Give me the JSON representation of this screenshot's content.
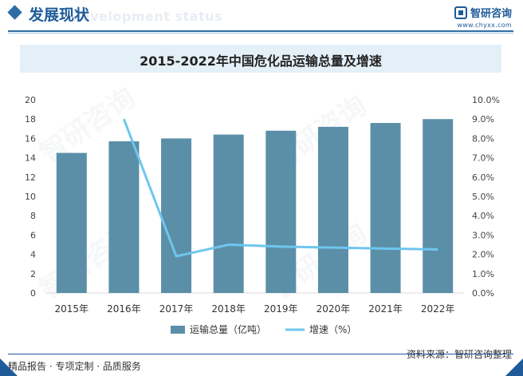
{
  "header": {
    "title": "发展现状",
    "subtitle": "Development status"
  },
  "brand": {
    "name": "智研咨询",
    "url": "www.chyxx.com"
  },
  "watermark": "智研咨询",
  "chart_data": {
    "type": "bar",
    "title": "2015-2022年中国危化品运输总量及增速",
    "categories": [
      "2015年",
      "2016年",
      "2017年",
      "2018年",
      "2019年",
      "2020年",
      "2021年",
      "2022年"
    ],
    "series": [
      {
        "name": "运输总量（亿吨）",
        "type": "bar",
        "axis": "left",
        "color": "#5b8fa8",
        "values": [
          14.5,
          15.7,
          16.0,
          16.4,
          16.8,
          17.2,
          17.6,
          18.0
        ]
      },
      {
        "name": "增速（%）",
        "type": "line",
        "axis": "right",
        "color": "#6ec6ee",
        "values": [
          null,
          9.0,
          1.9,
          2.5,
          2.4,
          2.35,
          2.3,
          2.25
        ]
      }
    ],
    "yLeft": {
      "min": 0,
      "max": 20,
      "step": 2,
      "ticks": [
        "0",
        "2",
        "4",
        "6",
        "8",
        "10",
        "12",
        "14",
        "16",
        "18",
        "20"
      ]
    },
    "yRight": {
      "min": 0,
      "max": 10,
      "step": 1,
      "ticks": [
        "0.0%",
        "1.0%",
        "2.0%",
        "3.0%",
        "4.0%",
        "5.0%",
        "6.0%",
        "7.0%",
        "8.0%",
        "9.0%",
        "10.0%"
      ]
    },
    "grid": false,
    "legend": "bottom"
  },
  "footer": {
    "left": "精品报告 · 专项定制 · 品质服务",
    "right": "资料来源：智研咨询整理"
  }
}
